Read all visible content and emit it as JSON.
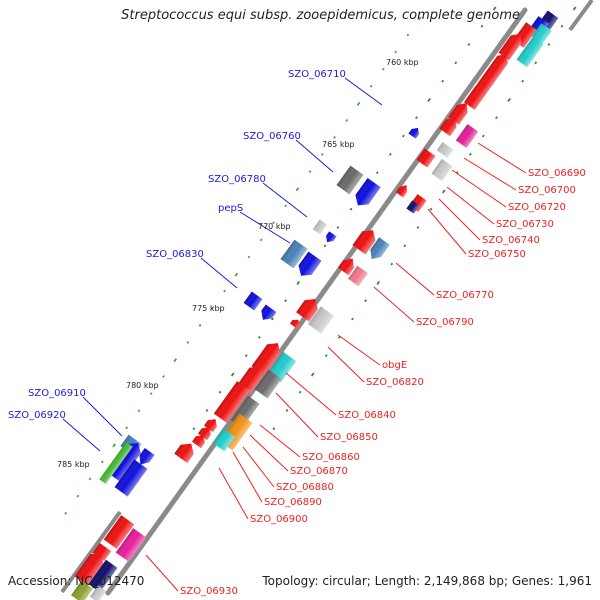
{
  "title": "Streptococcus equi subsp. zooepidemicus, complete genome",
  "footer": {
    "accession": "Accession: NC_012470",
    "stats": "Topology: circular; Length: 2,149,868 bp; Genes: 1,961"
  },
  "colors": {
    "red": "#ee1111",
    "pink": "#f07a8a",
    "magenta": "#e6209a",
    "blue": "#1010dd",
    "steel": "#4a82b8",
    "cyan": "#22cccc",
    "navy": "#10106e",
    "grey": "#6a6a6a",
    "lightgrey": "#c8c8c8",
    "green": "#44bb33",
    "orange": "#f19215",
    "olive": "#8aa030",
    "backbone": "#8a8a8a",
    "tick": "#2a8a2a",
    "label_left": "#1c1cd8",
    "label_right": "#ee2222"
  },
  "scale_marks": [
    "760 kbp",
    "765 kbp",
    "770 kbp",
    "775 kbp",
    "780 kbp",
    "785 kbp"
  ],
  "left_labels": [
    "SZO_06710",
    "SZO_06760",
    "SZO_06780",
    "pepS",
    "SZO_06830",
    "SZO_06910",
    "SZO_06920"
  ],
  "right_labels": [
    "SZO_06690",
    "SZO_06700",
    "SZO_06720",
    "SZO_06730",
    "SZO_06740",
    "SZO_06750",
    "SZO_06770",
    "SZO_06790",
    "obgE",
    "SZO_06820",
    "SZO_06840",
    "SZO_06850",
    "SZO_06860",
    "SZO_06870",
    "SZO_06880",
    "SZO_06890",
    "SZO_06900",
    "SZO_06930"
  ]
}
